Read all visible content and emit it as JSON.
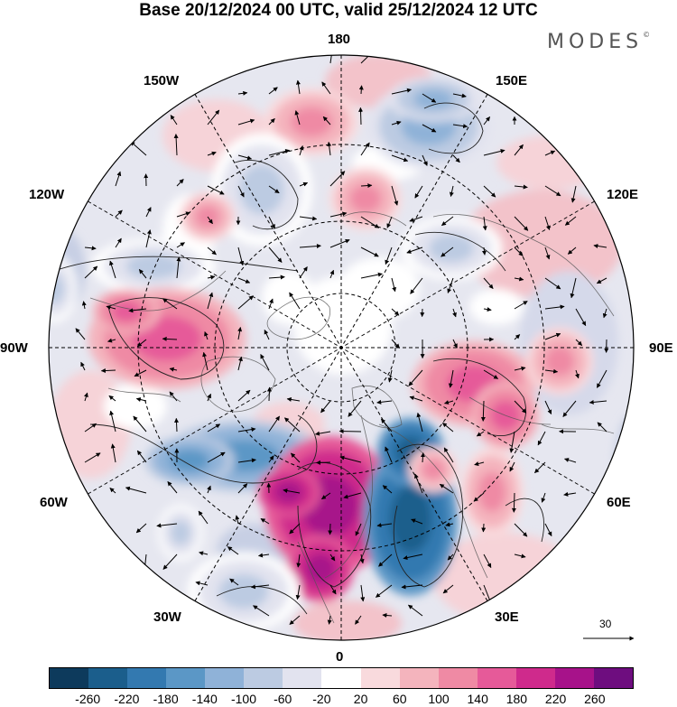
{
  "title": "Base 20/12/2024 00 UTC, valid 25/12/2024 12 UTC",
  "brand": "MODES",
  "brand_mark": "©",
  "longitude_labels": {
    "n180": "180",
    "w150": "150W",
    "e150": "150E",
    "w120": "120W",
    "e120": "120E",
    "w90": "90W",
    "e90": "90E",
    "w60": "60W",
    "e60": "60E",
    "w30": "30W",
    "e30": "30E",
    "s0": "0"
  },
  "reference_vector": {
    "value": "30",
    "icon": "arrow-right-icon"
  },
  "colorbar": {
    "colors": [
      "#0d3a5c",
      "#1b5e8c",
      "#3379b0",
      "#5b97c6",
      "#8fb2d8",
      "#bccbe2",
      "#e2e3ef",
      "#ffffff",
      "#f9dadd",
      "#f4b4bd",
      "#ef8aa4",
      "#e65a99",
      "#cf2a8c",
      "#a7128a",
      "#6e0d7f"
    ],
    "tick_labels": [
      "-260",
      "-220",
      "-180",
      "-140",
      "-100",
      "-60",
      "-20",
      "20",
      "60",
      "100",
      "140",
      "180",
      "220",
      "260"
    ]
  },
  "map": {
    "projection": "north polar stereographic",
    "anomaly_centers": [
      {
        "name": "positive-anomaly-bering",
        "sign": "+",
        "value": 120
      },
      {
        "name": "negative-anomaly-kamchatka",
        "sign": "-",
        "value": -140
      },
      {
        "name": "negative-anomaly-alaska",
        "sign": "-",
        "value": -100
      },
      {
        "name": "positive-anomaly-chukotka",
        "sign": "+",
        "value": 100
      },
      {
        "name": "negative-anomaly-east-siberia",
        "sign": "-",
        "value": -100
      },
      {
        "name": "negative-anomaly-canada",
        "sign": "-",
        "value": -100
      },
      {
        "name": "positive-anomaly-hudson",
        "sign": "+",
        "value": 140
      },
      {
        "name": "positive-anomaly-siberia",
        "sign": "+",
        "value": 160
      },
      {
        "name": "positive-anomaly-central-asia",
        "sign": "+",
        "value": 120
      },
      {
        "name": "negative-anomaly-greenland",
        "sign": "-",
        "value": -180
      },
      {
        "name": "positive-anomaly-north-atlantic",
        "sign": "+",
        "value": 220
      },
      {
        "name": "negative-anomaly-scandinavia",
        "sign": "-",
        "value": -260
      },
      {
        "name": "positive-anomaly-russia",
        "sign": "+",
        "value": 120
      },
      {
        "name": "negative-anomaly-atlantic-south",
        "sign": "-",
        "value": -100
      }
    ]
  }
}
